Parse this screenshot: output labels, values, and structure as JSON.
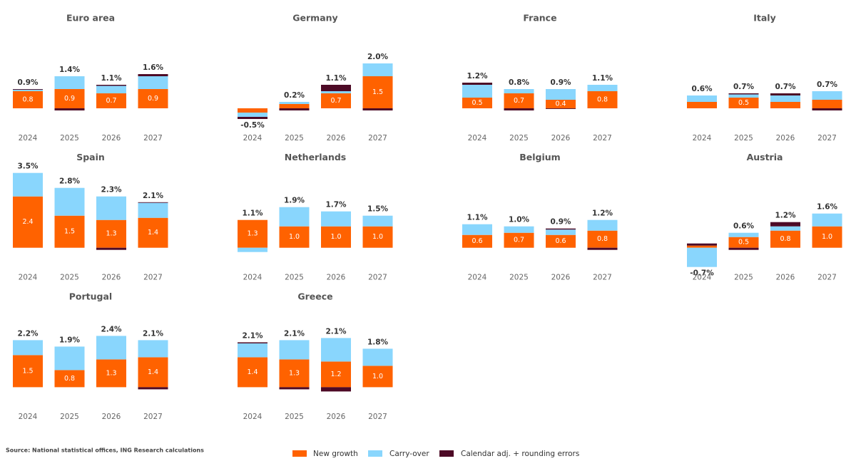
{
  "source": "Source: National statistical offices, ING Research calculations",
  "chart_data": [
    {
      "type": "bar",
      "stacked": true,
      "title": "Euro area",
      "categories": [
        "2024",
        "2025",
        "2026",
        "2027"
      ],
      "series": [
        {
          "name": "New growth",
          "color": "#ff6200",
          "values": [
            0.8,
            0.9,
            0.7,
            0.9
          ],
          "value_labels": [
            "0.8",
            "0.9",
            "0.7",
            "0.9"
          ]
        },
        {
          "name": "Carry-over",
          "color": "#89d6fd",
          "values": [
            0.07,
            0.6,
            0.35,
            0.6
          ]
        },
        {
          "name": "Calendar adj. + rounding errors",
          "color": "#4d0a26",
          "values": [
            0.03,
            -0.1,
            0.05,
            0.1
          ]
        }
      ],
      "totals": [
        0.9,
        1.4,
        1.1,
        1.6
      ],
      "total_labels": [
        "0.9%",
        "1.4%",
        "1.1%",
        "1.6%"
      ]
    },
    {
      "type": "bar",
      "stacked": true,
      "title": "Germany",
      "categories": [
        "2024",
        "2025",
        "2026",
        "2027"
      ],
      "series": [
        {
          "name": "New growth",
          "color": "#ff6200",
          "values": [
            -0.2,
            0.2,
            0.7,
            1.5
          ],
          "value_labels": [
            null,
            null,
            "0.7",
            "1.5"
          ]
        },
        {
          "name": "Carry-over",
          "color": "#89d6fd",
          "values": [
            -0.2,
            0.1,
            0.1,
            0.6
          ]
        },
        {
          "name": "Calendar adj. + rounding errors",
          "color": "#4d0a26",
          "values": [
            -0.1,
            -0.1,
            0.3,
            -0.1
          ]
        }
      ],
      "totals": [
        -0.5,
        0.2,
        1.1,
        2.0
      ],
      "total_labels": [
        "-0.5%",
        "0.2%",
        "1.1%",
        "2.0%"
      ]
    },
    {
      "type": "bar",
      "stacked": true,
      "title": "France",
      "categories": [
        "2024",
        "2025",
        "2026",
        "2027"
      ],
      "series": [
        {
          "name": "New growth",
          "color": "#ff6200",
          "values": [
            0.5,
            0.7,
            0.4,
            0.8
          ],
          "value_labels": [
            "0.5",
            "0.7",
            "0.4",
            "0.8"
          ]
        },
        {
          "name": "Carry-over",
          "color": "#89d6fd",
          "values": [
            0.6,
            0.2,
            0.5,
            0.3
          ]
        },
        {
          "name": "Calendar adj. + rounding errors",
          "color": "#4d0a26",
          "values": [
            0.1,
            -0.1,
            -0.03,
            0
          ]
        }
      ],
      "totals": [
        1.2,
        0.8,
        0.9,
        1.1
      ],
      "total_labels": [
        "1.2%",
        "0.8%",
        "0.9%",
        "1.1%"
      ]
    },
    {
      "type": "bar",
      "stacked": true,
      "title": "Italy",
      "categories": [
        "2024",
        "2025",
        "2026",
        "2027"
      ],
      "series": [
        {
          "name": "New growth",
          "color": "#ff6200",
          "values": [
            0.3,
            0.5,
            0.3,
            0.4
          ],
          "value_labels": [
            null,
            "0.5",
            null,
            null
          ]
        },
        {
          "name": "Carry-over",
          "color": "#89d6fd",
          "values": [
            0.3,
            0.15,
            0.3,
            0.4
          ]
        },
        {
          "name": "Calendar adj. + rounding errors",
          "color": "#4d0a26",
          "values": [
            0,
            0.05,
            0.1,
            -0.1
          ]
        }
      ],
      "totals": [
        0.6,
        0.7,
        0.7,
        0.7
      ],
      "total_labels": [
        "0.6%",
        "0.7%",
        "0.7%",
        "0.7%"
      ]
    },
    {
      "type": "bar",
      "stacked": true,
      "title": "Spain",
      "categories": [
        "2024",
        "2025",
        "2026",
        "2027"
      ],
      "series": [
        {
          "name": "New growth",
          "color": "#ff6200",
          "values": [
            2.4,
            1.5,
            1.3,
            1.4
          ],
          "value_labels": [
            "2.4",
            "1.5",
            "1.3",
            "1.4"
          ]
        },
        {
          "name": "Carry-over",
          "color": "#89d6fd",
          "values": [
            1.1,
            1.3,
            1.1,
            0.7
          ]
        },
        {
          "name": "Calendar adj. + rounding errors",
          "color": "#4d0a26",
          "values": [
            0,
            0,
            -0.1,
            0.03
          ]
        }
      ],
      "totals": [
        3.5,
        2.8,
        2.3,
        2.1
      ],
      "total_labels": [
        "3.5%",
        "2.8%",
        "2.3%",
        "2.1%"
      ]
    },
    {
      "type": "bar",
      "stacked": true,
      "title": "Netherlands",
      "categories": [
        "2024",
        "2025",
        "2026",
        "2027"
      ],
      "series": [
        {
          "name": "New growth",
          "color": "#ff6200",
          "values": [
            1.3,
            1.0,
            1.0,
            1.0
          ],
          "value_labels": [
            "1.3",
            "1.0",
            "1.0",
            "1.0"
          ]
        },
        {
          "name": "Carry-over",
          "color": "#89d6fd",
          "values": [
            -0.2,
            0.9,
            0.7,
            0.5
          ]
        },
        {
          "name": "Calendar adj. + rounding errors",
          "color": "#4d0a26",
          "values": [
            0,
            0,
            0,
            0
          ]
        }
      ],
      "totals": [
        1.1,
        1.9,
        1.7,
        1.5
      ],
      "total_labels": [
        "1.1%",
        "1.9%",
        "1.7%",
        "1.5%"
      ]
    },
    {
      "type": "bar",
      "stacked": true,
      "title": "Belgium",
      "categories": [
        "2024",
        "2025",
        "2026",
        "2027"
      ],
      "series": [
        {
          "name": "New growth",
          "color": "#ff6200",
          "values": [
            0.6,
            0.7,
            0.6,
            0.8
          ],
          "value_labels": [
            "0.6",
            "0.7",
            "0.6",
            "0.8"
          ]
        },
        {
          "name": "Carry-over",
          "color": "#89d6fd",
          "values": [
            0.5,
            0.3,
            0.25,
            0.5
          ]
        },
        {
          "name": "Calendar adj. + rounding errors",
          "color": "#4d0a26",
          "values": [
            0,
            0,
            0.05,
            -0.1
          ]
        }
      ],
      "totals": [
        1.1,
        1.0,
        0.9,
        1.2
      ],
      "total_labels": [
        "1.1%",
        "1.0%",
        "0.9%",
        "1.2%"
      ]
    },
    {
      "type": "bar",
      "stacked": true,
      "title": "Austria",
      "categories": [
        "2024",
        "2025",
        "2026",
        "2027"
      ],
      "series": [
        {
          "name": "New growth",
          "color": "#ff6200",
          "values": [
            0.1,
            0.5,
            0.8,
            1.0
          ],
          "value_labels": [
            null,
            "0.5",
            "0.8",
            "1.0"
          ]
        },
        {
          "name": "Carry-over",
          "color": "#89d6fd",
          "values": [
            -0.9,
            0.2,
            0.2,
            0.6
          ]
        },
        {
          "name": "Calendar adj. + rounding errors",
          "color": "#4d0a26",
          "values": [
            0.1,
            -0.1,
            0.2,
            0
          ]
        }
      ],
      "totals": [
        -0.7,
        0.6,
        1.2,
        1.6
      ],
      "total_labels": [
        "-0.7%",
        "0.6%",
        "1.2%",
        "1.6%"
      ]
    },
    {
      "type": "bar",
      "stacked": true,
      "title": "Portugal",
      "categories": [
        "2024",
        "2025",
        "2026",
        "2027"
      ],
      "series": [
        {
          "name": "New growth",
          "color": "#ff6200",
          "values": [
            1.5,
            0.8,
            1.3,
            1.4
          ],
          "value_labels": [
            "1.5",
            "0.8",
            "1.3",
            "1.4"
          ]
        },
        {
          "name": "Carry-over",
          "color": "#89d6fd",
          "values": [
            0.7,
            1.1,
            1.1,
            0.8
          ]
        },
        {
          "name": "Calendar adj. + rounding errors",
          "color": "#4d0a26",
          "values": [
            0,
            0,
            0,
            -0.1
          ]
        }
      ],
      "totals": [
        2.2,
        1.9,
        2.4,
        2.1
      ],
      "total_labels": [
        "2.2%",
        "1.9%",
        "2.4%",
        "2.1%"
      ]
    },
    {
      "type": "bar",
      "stacked": true,
      "title": "Greece",
      "categories": [
        "2024",
        "2025",
        "2026",
        "2027"
      ],
      "series": [
        {
          "name": "New growth",
          "color": "#ff6200",
          "values": [
            1.4,
            1.3,
            1.2,
            1.0
          ],
          "value_labels": [
            "1.4",
            "1.3",
            "1.2",
            "1.0"
          ]
        },
        {
          "name": "Carry-over",
          "color": "#89d6fd",
          "values": [
            0.65,
            0.9,
            1.1,
            0.8
          ]
        },
        {
          "name": "Calendar adj. + rounding errors",
          "color": "#4d0a26",
          "values": [
            0.05,
            -0.1,
            -0.2,
            0
          ]
        }
      ],
      "totals": [
        2.1,
        2.1,
        2.1,
        1.8
      ],
      "total_labels": [
        "2.1%",
        "2.1%",
        "2.1%",
        "1.8%"
      ]
    }
  ]
}
